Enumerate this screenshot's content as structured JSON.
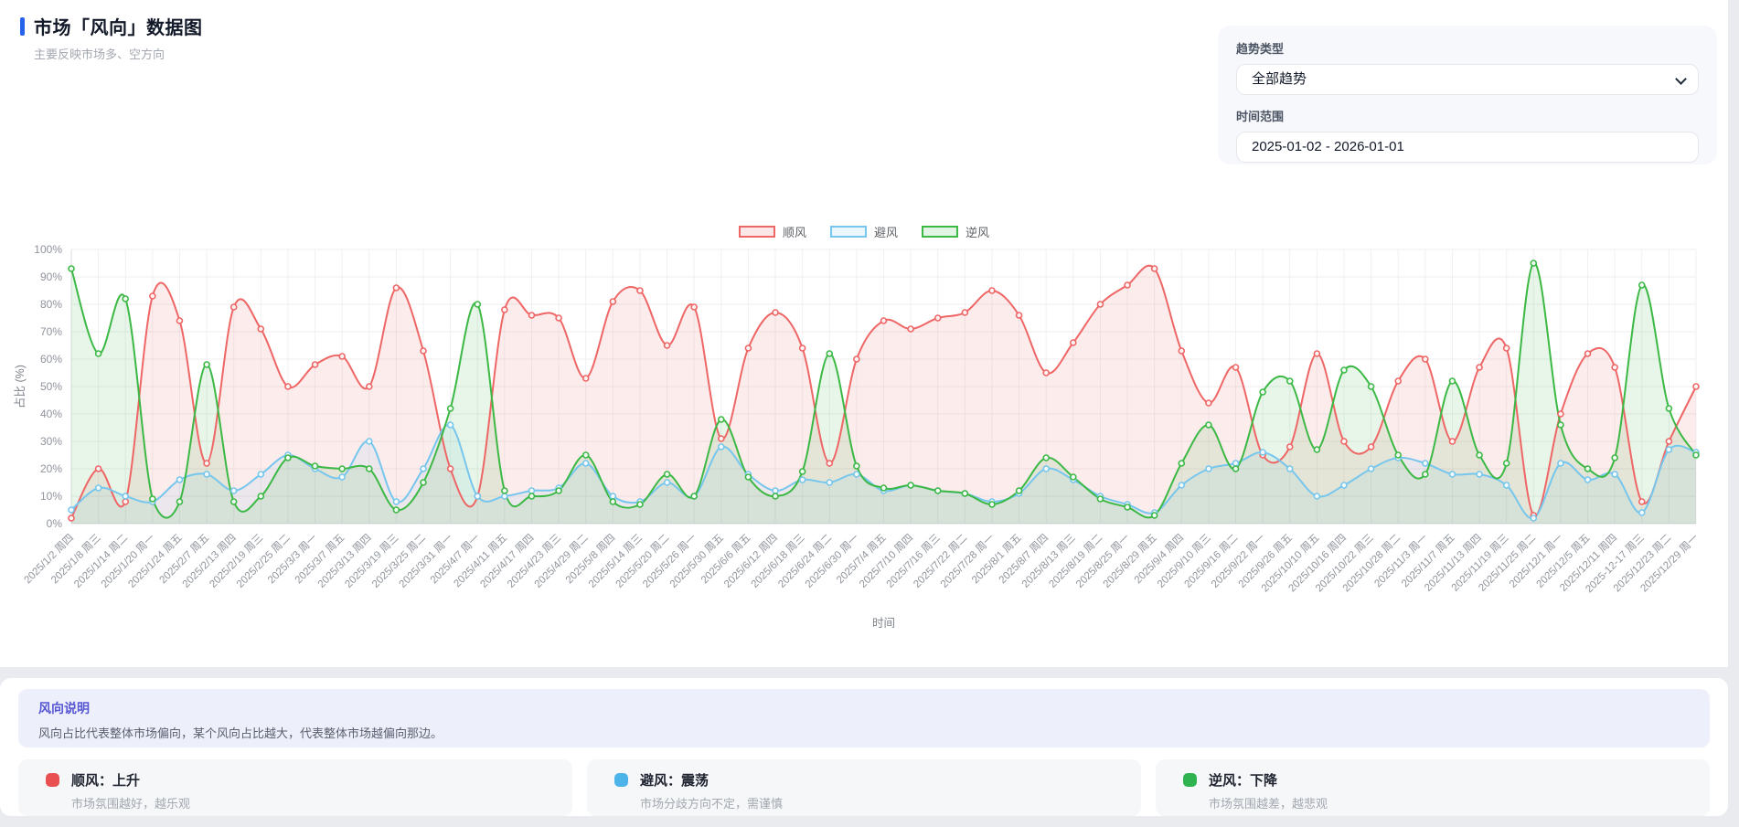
{
  "page": {
    "title": "市场「风向」数据图",
    "subtitle": "主要反映市场多、空方向",
    "accent_color": "#2563eb"
  },
  "controls": {
    "trend_type_label": "趋势类型",
    "trend_type_value": "全部趋势",
    "time_range_label": "时间范围",
    "time_range_value": "2025-01-02 - 2026-01-01"
  },
  "chart_data": {
    "type": "line",
    "title": "",
    "xlabel": "时间",
    "ylabel": "占比 (%)",
    "ylim": [
      0,
      100
    ],
    "grid": true,
    "legend_position": "top",
    "y_ticks": [
      "0%",
      "10%",
      "20%",
      "30%",
      "40%",
      "50%",
      "60%",
      "70%",
      "80%",
      "90%",
      "100%"
    ],
    "categories": [
      "2025/1/2 周四",
      "2025/1/8 周三",
      "2025/1/14 周二",
      "2025/1/20 周一",
      "2025/1/24 周五",
      "2025/2/7 周五",
      "2025/2/13 周四",
      "2025/2/19 周三",
      "2025/2/25 周二",
      "2025/3/3 周一",
      "2025/3/7 周五",
      "2025/3/13 周四",
      "2025/3/19 周三",
      "2025/3/25 周二",
      "2025/3/31 周一",
      "2025/4/7 周一",
      "2025/4/11 周五",
      "2025/4/17 周四",
      "2025/4/23 周三",
      "2025/4/29 周二",
      "2025/5/8 周四",
      "2025/5/14 周三",
      "2025/5/20 周二",
      "2025/5/26 周一",
      "2025/5/30 周五",
      "2025/6/6 周五",
      "2025/6/12 周四",
      "2025/6/18 周三",
      "2025/6/24 周二",
      "2025/6/30 周一",
      "2025/7/4 周五",
      "2025/7/10 周四",
      "2025/7/16 周三",
      "2025/7/22 周二",
      "2025/7/28 周一",
      "2025/8/1 周五",
      "2025/8/7 周四",
      "2025/8/13 周三",
      "2025/8/19 周二",
      "2025/8/25 周一",
      "2025/8/29 周五",
      "2025/9/4 周四",
      "2025/9/10 周三",
      "2025/9/16 周二",
      "2025/9/22 周一",
      "2025/9/26 周五",
      "2025/10/10 周五",
      "2025/10/16 周四",
      "2025/10/22 周三",
      "2025/10/28 周二",
      "2025/11/3 周一",
      "2025/11/7 周五",
      "2025/11/13 周四",
      "2025/11/19 周三",
      "2025/11/25 周二",
      "2025/12/1 周一",
      "2025/12/5 周五",
      "2025/12/11 周四",
      "2025-12-17 周三",
      "2025/12/23 周二",
      "2025/12/29 周一"
    ],
    "series": [
      {
        "name": "顺风",
        "color": "#ee6666",
        "values": [
          2,
          20,
          8,
          83,
          74,
          22,
          79,
          71,
          50,
          58,
          61,
          50,
          86,
          63,
          20,
          10,
          78,
          76,
          75,
          53,
          81,
          85,
          65,
          79,
          31,
          64,
          77,
          64,
          22,
          60,
          74,
          71,
          75,
          77,
          85,
          76,
          55,
          66,
          80,
          87,
          93,
          63,
          44,
          57,
          25,
          28,
          62,
          30,
          28,
          52,
          60,
          30,
          57,
          64,
          3,
          40,
          62,
          57,
          8,
          30,
          50
        ]
      },
      {
        "name": "避风",
        "color": "#76c6ed",
        "values": [
          5,
          13,
          10,
          8,
          16,
          18,
          12,
          18,
          25,
          20,
          17,
          30,
          8,
          20,
          36,
          10,
          10,
          12,
          13,
          22,
          10,
          8,
          15,
          10,
          28,
          18,
          12,
          16,
          15,
          18,
          12,
          14,
          12,
          11,
          8,
          11,
          20,
          16,
          10,
          7,
          4,
          14,
          20,
          22,
          26,
          20,
          10,
          14,
          20,
          24,
          22,
          18,
          18,
          14,
          2,
          22,
          16,
          18,
          4,
          27,
          26
        ]
      },
      {
        "name": "逆风",
        "color": "#3cb845",
        "values": [
          93,
          62,
          82,
          9,
          8,
          58,
          8,
          10,
          24,
          21,
          20,
          20,
          5,
          15,
          42,
          80,
          12,
          10,
          12,
          25,
          8,
          7,
          18,
          10,
          38,
          17,
          10,
          19,
          62,
          21,
          13,
          14,
          12,
          11,
          7,
          12,
          24,
          17,
          9,
          6,
          3,
          22,
          36,
          20,
          48,
          52,
          27,
          56,
          50,
          25,
          18,
          52,
          25,
          22,
          95,
          36,
          20,
          24,
          87,
          42,
          25
        ]
      }
    ]
  },
  "explanation": {
    "title": "风向说明",
    "body": "风向占比代表整体市场偏向，某个风向占比越大，代表整体市场越偏向那边。"
  },
  "cards": [
    {
      "title": "顺风：上升",
      "subtitle": "市场氛围越好，越乐观",
      "color": "#e85051"
    },
    {
      "title": "避风：震荡",
      "subtitle": "市场分歧方向不定，需谨慎",
      "color": "#4db4ea"
    },
    {
      "title": "逆风：下降",
      "subtitle": "市场氛围越差，越悲观",
      "color": "#2eb350"
    }
  ]
}
